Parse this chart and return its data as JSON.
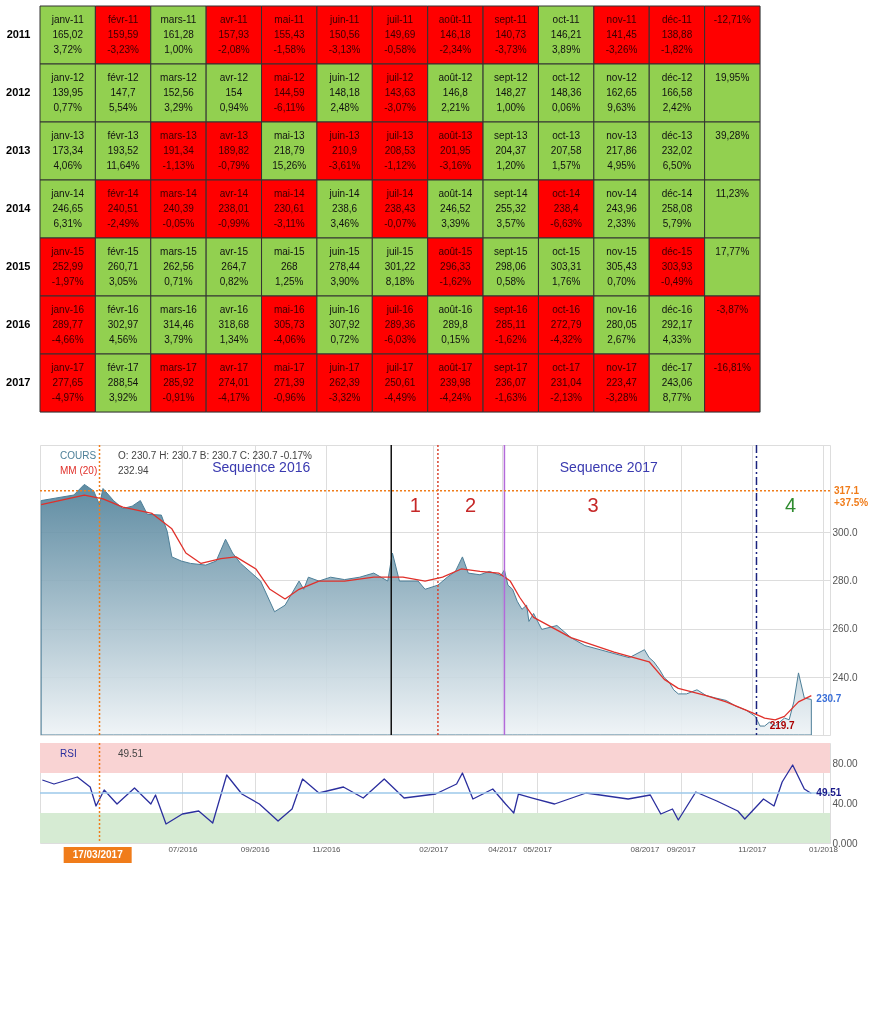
{
  "chart_data": [
    {
      "type": "heatmap",
      "categories": [
        null,
        null,
        null,
        null,
        null,
        null,
        null,
        null,
        null,
        null,
        null,
        null,
        null
      ],
      "y_categories": [
        "2011",
        "2012",
        "2013",
        "2014",
        "2015",
        "2016",
        "2017"
      ],
      "colors": [
        "#ff0000",
        "#92d050"
      ],
      "cells": [
        [
          3.72,
          -3.23,
          1.0,
          -2.08,
          -1.58,
          -3.13,
          -0.58,
          -2.34,
          -3.73,
          3.89,
          -3.26,
          -1.82,
          -12.71
        ],
        [
          0.77,
          5.54,
          3.29,
          0.94,
          -6.11,
          2.48,
          -3.07,
          2.21,
          1.0,
          0.06,
          9.63,
          2.42,
          19.95
        ],
        [
          4.06,
          11.64,
          -1.13,
          -0.79,
          15.26,
          -3.61,
          -1.12,
          -3.16,
          1.2,
          1.57,
          4.95,
          6.5,
          39.28
        ],
        [
          6.31,
          -2.49,
          -0.05,
          -0.99,
          -3.11,
          3.46,
          -0.07,
          3.39,
          3.57,
          -6.63,
          2.33,
          5.79,
          11.23
        ],
        [
          -1.97,
          3.05,
          0.71,
          0.82,
          1.25,
          3.9,
          8.18,
          -1.62,
          0.58,
          1.76,
          0.7,
          -0.49,
          17.77
        ],
        [
          -4.66,
          4.56,
          3.79,
          1.34,
          -4.06,
          0.72,
          -6.03,
          0.15,
          -1.62,
          -4.32,
          2.67,
          4.33,
          -3.87
        ],
        [
          -4.97,
          3.92,
          -0.91,
          -4.17,
          -0.96,
          -3.32,
          -4.49,
          -4.24,
          -1.63,
          -2.13,
          -3.28,
          8.77,
          -16.81
        ]
      ],
      "cell_labels": [
        [
          "3,72%",
          "-3,23%",
          "1,00%",
          "-2,08%",
          "-1,58%",
          "-3,13%",
          "-0,58%",
          "-2,34%",
          "-3,73%",
          "3,89%",
          "-3,26%",
          "-1,82%",
          "-12,71%"
        ],
        [
          "0,77%",
          "5,54%",
          "3,29%",
          "0,94%",
          "-6,11%",
          "2,48%",
          "-3,07%",
          "2,21%",
          "1,00%",
          "0,06%",
          "9,63%",
          "2,42%",
          "19,95%"
        ],
        [
          "4,06%",
          "11,64%",
          "-1,13%",
          "-0,79%",
          "15,26%",
          "-3,61%",
          "-1,12%",
          "-3,16%",
          "1,20%",
          "1,57%",
          "4,95%",
          "6,50%",
          "39,28%"
        ],
        [
          "6,31%",
          "-2,49%",
          "-0,05%",
          "-0,99%",
          "-3,11%",
          "3,46%",
          "-0,07%",
          "3,39%",
          "3,57%",
          "-6,63%",
          "2,33%",
          "5,79%",
          "11,23%"
        ],
        [
          "-1,97%",
          "3,05%",
          "0,71%",
          "0,82%",
          "1,25%",
          "3,90%",
          "8,18%",
          "-1,62%",
          "0,58%",
          "1,76%",
          "0,70%",
          "-0,49%",
          "17,77%"
        ],
        [
          "-4,66%",
          "4,56%",
          "3,79%",
          "1,34%",
          "-4,06%",
          "0,72%",
          "-6,03%",
          "0,15%",
          "-1,62%",
          "-4,32%",
          "2,67%",
          "4,33%",
          "-3,87%"
        ],
        [
          "-4,97%",
          "3,92%",
          "-0,91%",
          "-4,17%",
          "-0,96%",
          "-3,32%",
          "-4,49%",
          "-4,24%",
          "-1,63%",
          "-2,13%",
          "-3,28%",
          "8,77%",
          "-16,81%"
        ]
      ],
      "annotations": [
        "janv-11\n165,02",
        "févr-11\n159,59",
        "mars-11\n161,28",
        "avr-11\n157,93",
        "mai-11\n155,43",
        "juin-11\n150,56",
        "juil-11\n149,69",
        "août-11\n146,18",
        "sept-11\n140,73",
        "oct-11\n146,21",
        "nov-11\n141,45",
        "déc-11\n138,88",
        "janv-12\n139,95",
        "févr-12\n147,7",
        "mars-12\n152,56",
        "avr-12\n154",
        "mai-12\n144,59",
        "juin-12\n148,18",
        "juil-12\n143,63",
        "août-12\n146,8",
        "sept-12\n148,27",
        "oct-12\n148,36",
        "nov-12\n162,65",
        "déc-12\n166,58",
        "janv-13\n173,34",
        "févr-13\n193,52",
        "mars-13\n191,34",
        "avr-13\n189,82",
        "mai-13\n218,79",
        "juin-13\n210,9",
        "juil-13\n208,53",
        "août-13\n201,95",
        "sept-13\n204,37",
        "oct-13\n207,58",
        "nov-13\n217,86",
        "déc-13\n232,02",
        "janv-14\n246,65",
        "févr-14\n240,51",
        "mars-14\n240,39",
        "avr-14\n238,01",
        "mai-14\n230,61",
        "juin-14\n238,6",
        "juil-14\n238,43",
        "août-14\n246,52",
        "sept-14\n255,32",
        "oct-14\n238,4",
        "nov-14\n243,96",
        "déc-14\n258,08",
        "janv-15\n252,99",
        "févr-15\n260,71",
        "mars-15\n262,56",
        "avr-15\n264,7",
        "mai-15\n268",
        "juin-15\n278,44",
        "juil-15\n301,22",
        "août-15\n296,33",
        "sept-15\n298,06",
        "oct-15\n303,31",
        "nov-15\n305,43",
        "déc-15\n303,93",
        "janv-16\n289,77",
        "févr-16\n302,97",
        "mars-16\n314,46",
        "avr-16\n318,68",
        "mai-16\n305,73",
        "juin-16\n307,92",
        "juil-16\n289,36",
        "août-16\n289,8",
        "sept-16\n285,11",
        "oct-16\n272,79",
        "nov-16\n280,05",
        "déc-16\n292,17",
        "janv-17\n277,65",
        "févr-17\n288,54",
        "mars-17\n285,92",
        "avr-17\n274,01",
        "mai-17\n271,39",
        "juin-17\n262,39",
        "juil-17\n250,61",
        "août-17\n239,98",
        "sept-17\n236,07",
        "oct-17\n231,04",
        "nov-17\n223,47",
        "déc-17\n243,06"
      ]
    },
    {
      "type": "area",
      "xlim": [
        "2016-03-01",
        "2018-01-07"
      ],
      "ylim": [
        216,
        336
      ],
      "grid": true,
      "tick_labels": "y",
      "xticks": [
        {
          "value": "2016-07-01",
          "label": null
        },
        {
          "value": "2016-09-01",
          "label": null
        },
        {
          "value": "2016-11-01",
          "label": null
        },
        {
          "value": "2017-02-01",
          "label": null
        },
        {
          "value": "2017-04-01",
          "label": null
        },
        {
          "value": "2017-05-01",
          "label": null
        },
        {
          "value": "2017-08-01",
          "label": null
        },
        {
          "value": "2017-09-01",
          "label": null
        },
        {
          "value": "2017-11-01",
          "label": null
        },
        {
          "value": "2018-01-01",
          "label": null
        }
      ],
      "yticks": [
        {
          "value": 240,
          "label": "240.0"
        },
        {
          "value": 260,
          "label": "260.0"
        },
        {
          "value": 280,
          "label": "280.0"
        },
        {
          "value": 300,
          "label": "300.0"
        }
      ],
      "series": [
        {
          "name": "COURS",
          "type": "area",
          "color": "#4d7f98",
          "x": [
            "2016-03-02",
            "2016-03-14",
            "2016-03-30",
            "2016-04-08",
            "2016-04-16",
            "2016-04-21",
            "2016-04-24",
            "2016-05-03",
            "2016-05-11",
            "2016-05-19",
            "2016-05-26",
            "2016-06-01",
            "2016-06-13",
            "2016-06-18",
            "2016-06-22",
            "2016-06-30",
            "2016-07-08",
            "2016-07-21",
            "2016-07-30",
            "2016-08-07",
            "2016-08-13",
            "2016-08-20",
            "2016-09-06",
            "2016-09-18",
            "2016-09-27",
            "2016-10-09",
            "2016-10-13",
            "2016-10-17",
            "2016-10-26",
            "2016-11-05",
            "2016-11-17",
            "2016-11-30",
            "2016-12-12",
            "2016-12-24",
            "2016-12-28",
            "2017-01-03",
            "2017-01-19",
            "2017-01-25",
            "2017-02-05",
            "2017-02-13",
            "2017-02-20",
            "2017-02-26",
            "2017-03-03",
            "2017-03-13",
            "2017-03-21",
            "2017-03-31",
            "2017-04-03",
            "2017-04-06",
            "2017-04-10",
            "2017-04-14",
            "2017-04-18",
            "2017-04-22",
            "2017-04-24",
            "2017-04-28",
            "2017-05-05",
            "2017-05-18",
            "2017-05-30",
            "2017-06-11",
            "2017-06-24",
            "2017-07-06",
            "2017-07-19",
            "2017-08-01",
            "2017-08-05",
            "2017-08-09",
            "2017-08-14",
            "2017-08-18",
            "2017-08-22",
            "2017-08-26",
            "2017-08-30",
            "2017-09-06",
            "2017-09-15",
            "2017-09-23",
            "2017-10-01",
            "2017-10-10",
            "2017-10-18",
            "2017-10-27",
            "2017-11-04",
            "2017-11-08",
            "2017-11-12",
            "2017-11-16",
            "2017-11-21",
            "2017-11-29",
            "2017-12-03",
            "2017-12-07",
            "2017-12-11",
            "2017-12-16",
            "2017-12-22"
          ],
          "values": [
            313.0,
            314.0,
            315.3,
            319.7,
            317.0,
            311.3,
            318.0,
            313.0,
            309.7,
            310.7,
            313.0,
            307.3,
            307.0,
            300.3,
            289.7,
            288.0,
            287.0,
            286.3,
            288.0,
            297.0,
            291.3,
            287.0,
            279.7,
            267.0,
            269.7,
            279.7,
            276.3,
            281.3,
            279.7,
            281.3,
            280.3,
            281.3,
            283.0,
            279.7,
            291.3,
            279.7,
            279.7,
            276.3,
            278.0,
            281.3,
            283.7,
            289.7,
            283.0,
            282.3,
            283.7,
            282.0,
            284.3,
            278.0,
            276.3,
            271.3,
            268.0,
            269.7,
            263.0,
            266.3,
            259.7,
            261.3,
            256.3,
            253.0,
            251.3,
            249.7,
            248.0,
            251.3,
            248.0,
            246.3,
            243.0,
            239.7,
            238.0,
            234.7,
            233.0,
            233.0,
            234.7,
            232.3,
            231.3,
            230.3,
            228.0,
            226.3,
            223.7,
            219.7,
            219.7,
            221.3,
            219.7,
            223.0,
            222.3,
            229.7,
            241.7,
            231.3,
            230.7
          ]
        },
        {
          "name": "MM (20)",
          "type": "line",
          "color": "#e0302a",
          "x": [
            "2016-03-02",
            "2016-04-08",
            "2016-04-24",
            "2016-05-11",
            "2016-06-05",
            "2016-06-22",
            "2016-07-04",
            "2016-07-17",
            "2016-08-03",
            "2016-08-16",
            "2016-09-02",
            "2016-09-14",
            "2016-09-27",
            "2016-10-09",
            "2016-10-26",
            "2016-11-17",
            "2016-12-12",
            "2017-01-06",
            "2017-01-25",
            "2017-02-09",
            "2017-02-25",
            "2017-03-13",
            "2017-03-29",
            "2017-04-08",
            "2017-04-16",
            "2017-04-28",
            "2017-05-30",
            "2017-07-06",
            "2017-08-05",
            "2017-08-18",
            "2017-08-30",
            "2017-09-23",
            "2017-10-10",
            "2017-10-27",
            "2017-11-12",
            "2017-11-21",
            "2017-11-29",
            "2017-12-11",
            "2017-12-22"
          ],
          "values": [
            311.3,
            315.3,
            313.7,
            310.3,
            307.7,
            301.3,
            291.3,
            287.0,
            289.0,
            289.7,
            284.7,
            276.3,
            272.3,
            276.3,
            279.7,
            279.7,
            281.3,
            281.3,
            279.7,
            281.3,
            284.7,
            283.7,
            283.0,
            279.7,
            273.0,
            264.7,
            256.3,
            250.3,
            246.3,
            239.0,
            235.3,
            232.3,
            229.7,
            226.3,
            223.0,
            222.3,
            223.7,
            229.7,
            232.3
          ]
        }
      ],
      "ref_lines": [
        {
          "axis": "x",
          "value": "2016-04-21",
          "color": "#f07c1a",
          "line_style": "dotted"
        },
        {
          "axis": "x",
          "value": "2016-12-27",
          "color": "#111111",
          "line_style": "solid"
        },
        {
          "axis": "x",
          "value": "2017-02-05",
          "color": "#d9442f",
          "line_style": "dotted"
        },
        {
          "axis": "x",
          "value": "2017-04-03",
          "color": "#b36ad9",
          "line_style": "solid"
        },
        {
          "axis": "x",
          "value": "2017-11-05",
          "color": "#1a237e",
          "line_style": "dashed"
        },
        {
          "axis": "y",
          "value": 317.1,
          "color": "#f07c1a",
          "line_style": "dotted",
          "label": "317.1 +37.5%"
        }
      ],
      "annotations": [
        "O: 230.7   H: 230.7   B: 230.7   C: 230.7 -0.17%",
        "232.94",
        "Sequence 2016",
        "Sequence 2017",
        "1",
        "2",
        "3",
        "4",
        {
          "text": "230.7",
          "x": "2017-12-22",
          "y": 230.7
        },
        {
          "text": "219.7",
          "x": "2017-11-12",
          "y": 219.7
        }
      ]
    },
    {
      "type": "line",
      "xlim": [
        "2016-03-01",
        "2018-01-07"
      ],
      "ylim": [
        0,
        100
      ],
      "grid": "x",
      "xticks": [
        {
          "value": "2016-07-01",
          "label": "07/2016"
        },
        {
          "value": "2016-09-01",
          "label": "09/2016"
        },
        {
          "value": "2016-11-01",
          "label": "11/2016"
        },
        {
          "value": "2017-02-01",
          "label": "02/2017"
        },
        {
          "value": "2017-04-01",
          "label": "04/2017"
        },
        {
          "value": "2017-05-01",
          "label": "05/2017"
        },
        {
          "value": "2017-08-01",
          "label": "08/2017"
        },
        {
          "value": "2017-09-01",
          "label": "09/2017"
        },
        {
          "value": "2017-11-01",
          "label": "11/2017"
        },
        {
          "value": "2018-01-01",
          "label": "01/2018"
        }
      ],
      "yticks": [
        {
          "value": 0,
          "label": "0.000"
        },
        {
          "value": 40,
          "label": "40.00"
        },
        {
          "value": 80,
          "label": "80.00"
        }
      ],
      "series": [
        {
          "name": "RSI",
          "type": "line",
          "color": "#2b2f9e",
          "x": [
            "2016-03-03",
            "2016-03-13",
            "2016-04-02",
            "2016-04-13",
            "2016-04-18",
            "2016-04-25",
            "2016-05-06",
            "2016-05-21",
            "2016-06-04",
            "2016-06-08",
            "2016-06-17",
            "2016-07-01",
            "2016-07-15",
            "2016-07-27",
            "2016-08-08",
            "2016-08-21",
            "2016-09-05",
            "2016-09-21",
            "2016-10-03",
            "2016-10-12",
            "2016-10-26",
            "2016-11-16",
            "2016-12-03",
            "2016-12-21",
            "2017-01-07",
            "2017-02-03",
            "2017-02-21",
            "2017-02-26",
            "2017-03-07",
            "2017-03-24",
            "2017-04-04",
            "2017-04-11",
            "2017-04-15",
            "2017-04-27",
            "2017-05-16",
            "2017-06-12",
            "2017-07-18",
            "2017-08-06",
            "2017-08-15",
            "2017-08-25",
            "2017-08-30",
            "2017-09-14",
            "2017-10-02",
            "2017-10-20",
            "2017-10-26",
            "2017-11-11",
            "2017-11-20",
            "2017-11-27",
            "2017-12-06",
            "2017-12-16",
            "2017-12-22"
          ],
          "values": [
            63,
            59,
            66,
            56,
            37,
            53,
            39,
            55,
            39,
            48,
            19,
            29,
            32,
            20,
            68,
            49,
            39,
            22,
            34,
            64,
            50,
            56,
            45,
            64,
            45,
            49,
            59,
            70,
            44,
            54,
            39,
            30,
            49,
            45,
            39,
            50,
            44,
            48,
            29,
            34,
            23,
            51,
            42,
            32,
            24,
            44,
            37,
            61,
            78,
            54,
            49.51
          ]
        }
      ],
      "bands": [
        {
          "axis": "y",
          "from": 70,
          "to": 100,
          "color": "#f9d3d3"
        },
        {
          "axis": "y",
          "from": 0,
          "to": 30,
          "color": "#d6ebd3"
        }
      ],
      "ref_lines": [
        {
          "axis": "y",
          "value": 50,
          "color": "#9cc9ea",
          "line_style": "solid"
        },
        {
          "axis": "x",
          "value": "2016-04-21",
          "color": "#f07c1a",
          "line_style": "dotted"
        }
      ],
      "annotations": [
        "49.51",
        "17/03/2017",
        {
          "text": "49.51",
          "x": "2017-12-22",
          "y": 49.51
        }
      ]
    }
  ]
}
